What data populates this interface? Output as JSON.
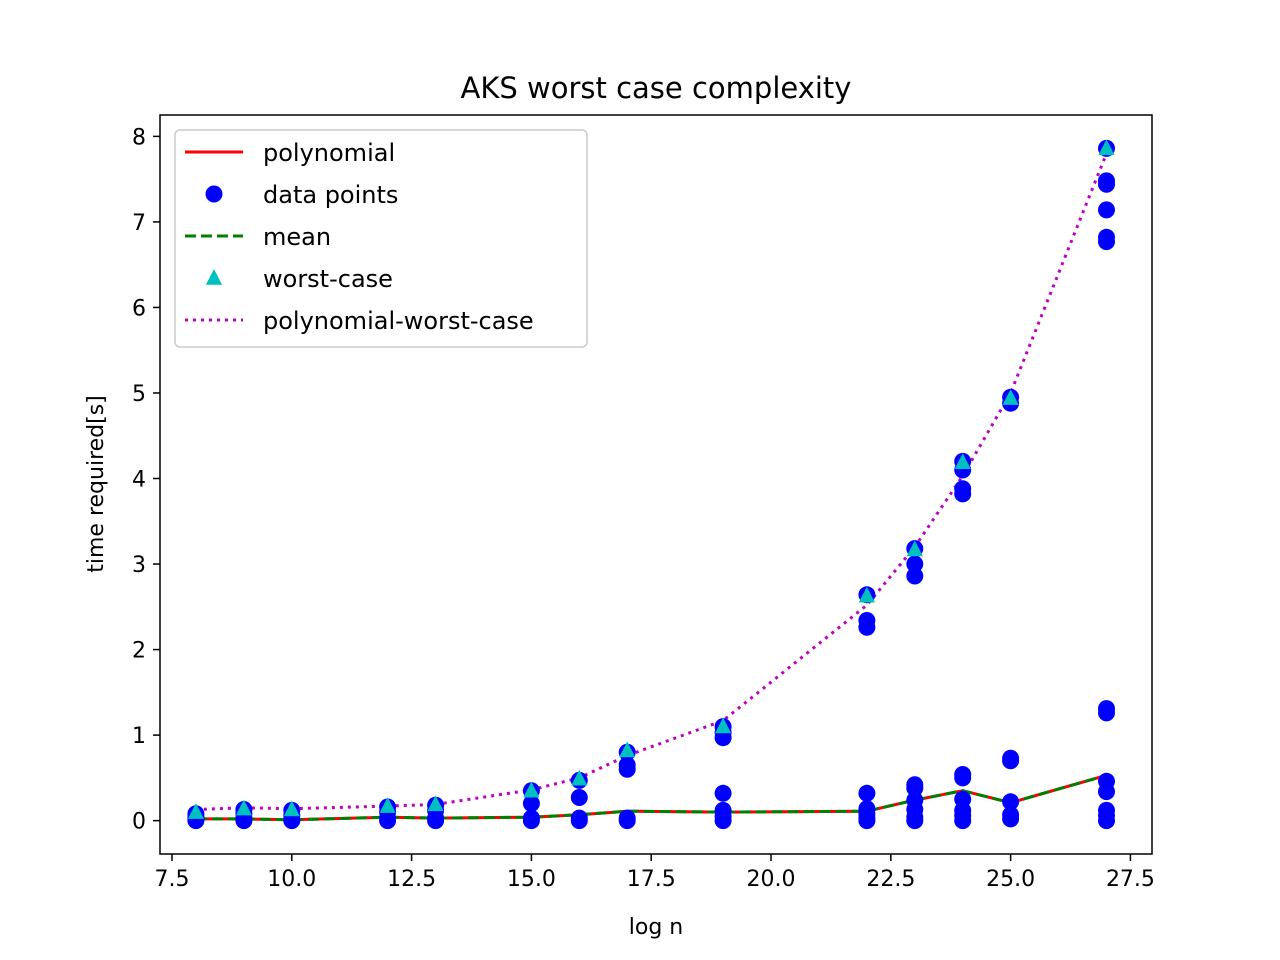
{
  "chart_data": {
    "type": "scatter",
    "title": "AKS worst case complexity",
    "xlabel": "log n",
    "ylabel": "time required[s]",
    "xlim": [
      7.25,
      27.95
    ],
    "ylim": [
      -0.39,
      8.25
    ],
    "xticks": [
      "7.5",
      "10.0",
      "12.5",
      "15.0",
      "17.5",
      "20.0",
      "22.5",
      "25.0",
      "27.5"
    ],
    "yticks": [
      "0",
      "1",
      "2",
      "3",
      "4",
      "5",
      "6",
      "7",
      "8"
    ],
    "grid": false,
    "legend_position": "upper-left",
    "legend": [
      "polynomial",
      "data points",
      "mean",
      "worst-case",
      "polynomial-worst-case"
    ],
    "series": [
      {
        "name": "polynomial",
        "kind": "line",
        "style": "solid",
        "color": "#ff0000",
        "x": [
          8,
          9,
          10,
          12,
          13,
          15,
          16,
          17,
          19,
          22,
          23,
          24,
          25,
          27
        ],
        "y": [
          0.02,
          0.02,
          0.01,
          0.04,
          0.03,
          0.04,
          0.07,
          0.11,
          0.1,
          0.11,
          0.24,
          0.35,
          0.21,
          0.53
        ]
      },
      {
        "name": "data points",
        "kind": "points",
        "marker": "circle",
        "color": "#0000ff",
        "points": [
          [
            8,
            0.0
          ],
          [
            8,
            0.02
          ],
          [
            8,
            0.05
          ],
          [
            8,
            0.08
          ],
          [
            9,
            0.0
          ],
          [
            9,
            0.03
          ],
          [
            9,
            0.08
          ],
          [
            9,
            0.13
          ],
          [
            10,
            0.0
          ],
          [
            10,
            0.02
          ],
          [
            10,
            0.06
          ],
          [
            10,
            0.12
          ],
          [
            12,
            0.0
          ],
          [
            12,
            0.03
          ],
          [
            12,
            0.1
          ],
          [
            12,
            0.16
          ],
          [
            13,
            0.0
          ],
          [
            13,
            0.03
          ],
          [
            13,
            0.12
          ],
          [
            13,
            0.18
          ],
          [
            15,
            0.0
          ],
          [
            15,
            0.03
          ],
          [
            15,
            0.2
          ],
          [
            15,
            0.35
          ],
          [
            16,
            0.0
          ],
          [
            16,
            0.03
          ],
          [
            16,
            0.27
          ],
          [
            16,
            0.47
          ],
          [
            17,
            0.0
          ],
          [
            17,
            0.03
          ],
          [
            17,
            0.6
          ],
          [
            17,
            0.65
          ],
          [
            17,
            0.8
          ],
          [
            19,
            0.0
          ],
          [
            19,
            0.05
          ],
          [
            19,
            0.12
          ],
          [
            19,
            0.32
          ],
          [
            19,
            0.97
          ],
          [
            19,
            1.03
          ],
          [
            19,
            1.1
          ],
          [
            22,
            0.0
          ],
          [
            22,
            0.03
          ],
          [
            22,
            0.08
          ],
          [
            22,
            0.14
          ],
          [
            22,
            0.32
          ],
          [
            22,
            2.26
          ],
          [
            22,
            2.34
          ],
          [
            22,
            2.64
          ],
          [
            23,
            0.0
          ],
          [
            23,
            0.04
          ],
          [
            23,
            0.13
          ],
          [
            23,
            0.24
          ],
          [
            23,
            0.38
          ],
          [
            23,
            0.42
          ],
          [
            23,
            2.86
          ],
          [
            23,
            3.0
          ],
          [
            23,
            3.18
          ],
          [
            24,
            0.0
          ],
          [
            24,
            0.06
          ],
          [
            24,
            0.12
          ],
          [
            24,
            0.25
          ],
          [
            24,
            0.5
          ],
          [
            24,
            0.54
          ],
          [
            24,
            3.82
          ],
          [
            24,
            3.88
          ],
          [
            24,
            4.1
          ],
          [
            24,
            4.2
          ],
          [
            25,
            0.02
          ],
          [
            25,
            0.07
          ],
          [
            25,
            0.22
          ],
          [
            25,
            0.7
          ],
          [
            25,
            0.73
          ],
          [
            25,
            4.88
          ],
          [
            25,
            4.95
          ],
          [
            27,
            0.0
          ],
          [
            27,
            0.06
          ],
          [
            27,
            0.12
          ],
          [
            27,
            0.34
          ],
          [
            27,
            0.46
          ],
          [
            27,
            1.26
          ],
          [
            27,
            1.31
          ],
          [
            27,
            6.77
          ],
          [
            27,
            6.82
          ],
          [
            27,
            7.14
          ],
          [
            27,
            7.44
          ],
          [
            27,
            7.48
          ],
          [
            27,
            7.86
          ]
        ]
      },
      {
        "name": "mean",
        "kind": "line",
        "style": "dashed",
        "color": "#008000",
        "x": [
          8,
          9,
          10,
          12,
          13,
          15,
          16,
          17,
          19,
          22,
          23,
          24,
          25,
          27
        ],
        "y": [
          0.02,
          0.02,
          0.01,
          0.04,
          0.03,
          0.04,
          0.07,
          0.11,
          0.1,
          0.11,
          0.24,
          0.35,
          0.21,
          0.53
        ]
      },
      {
        "name": "worst-case",
        "kind": "points",
        "marker": "triangle",
        "color": "#00bfbf",
        "x": [
          8,
          9,
          10,
          12,
          13,
          15,
          16,
          17,
          19,
          22,
          23,
          24,
          25,
          27
        ],
        "y": [
          0.1,
          0.14,
          0.13,
          0.17,
          0.19,
          0.35,
          0.49,
          0.82,
          1.1,
          2.63,
          3.17,
          4.19,
          4.94,
          7.86
        ]
      },
      {
        "name": "polynomial-worst-case",
        "kind": "line",
        "style": "dotted",
        "color": "#bf00bf",
        "x": [
          8,
          9,
          10,
          12,
          13,
          15,
          16,
          17,
          19,
          22,
          23,
          24,
          25,
          27
        ],
        "y": [
          0.13,
          0.15,
          0.14,
          0.17,
          0.19,
          0.36,
          0.5,
          0.76,
          1.17,
          2.52,
          3.2,
          4.03,
          5.0,
          7.8
        ]
      }
    ]
  }
}
